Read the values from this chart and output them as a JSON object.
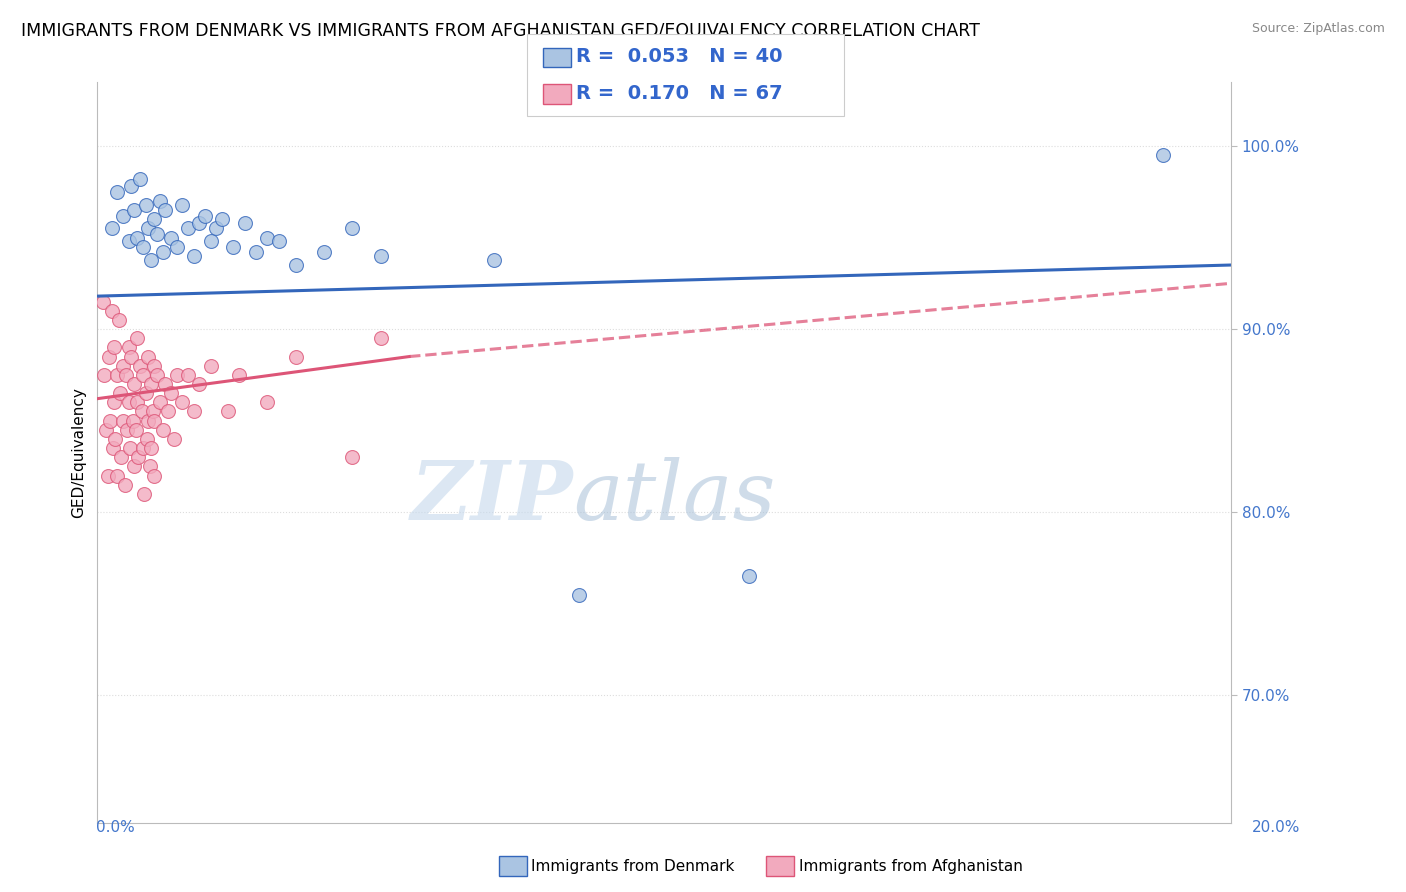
{
  "title": "IMMIGRANTS FROM DENMARK VS IMMIGRANTS FROM AFGHANISTAN GED/EQUIVALENCY CORRELATION CHART",
  "source": "Source: ZipAtlas.com",
  "ylabel": "GED/Equivalency",
  "xlim": [
    0.0,
    20.0
  ],
  "ylim": [
    63.0,
    103.5
  ],
  "color_denmark": "#aac4e2",
  "color_afghanistan": "#f2aabe",
  "trend_color_denmark": "#3366bb",
  "trend_color_afghanistan": "#dd5577",
  "trend_dk_x0": 0.0,
  "trend_dk_y0": 91.8,
  "trend_dk_x1": 20.0,
  "trend_dk_y1": 93.5,
  "trend_af_solid_x0": 0.0,
  "trend_af_solid_y0": 86.2,
  "trend_af_solid_x1": 5.5,
  "trend_af_solid_y1": 88.5,
  "trend_af_dash_x0": 5.5,
  "trend_af_dash_y0": 88.5,
  "trend_af_dash_x1": 20.0,
  "trend_af_dash_y1": 92.5,
  "scatter_denmark": [
    [
      0.25,
      95.5
    ],
    [
      0.35,
      97.5
    ],
    [
      0.45,
      96.2
    ],
    [
      0.55,
      94.8
    ],
    [
      0.6,
      97.8
    ],
    [
      0.65,
      96.5
    ],
    [
      0.7,
      95.0
    ],
    [
      0.75,
      98.2
    ],
    [
      0.8,
      94.5
    ],
    [
      0.85,
      96.8
    ],
    [
      0.9,
      95.5
    ],
    [
      0.95,
      93.8
    ],
    [
      1.0,
      96.0
    ],
    [
      1.05,
      95.2
    ],
    [
      1.1,
      97.0
    ],
    [
      1.15,
      94.2
    ],
    [
      1.2,
      96.5
    ],
    [
      1.3,
      95.0
    ],
    [
      1.4,
      94.5
    ],
    [
      1.5,
      96.8
    ],
    [
      1.6,
      95.5
    ],
    [
      1.7,
      94.0
    ],
    [
      1.8,
      95.8
    ],
    [
      1.9,
      96.2
    ],
    [
      2.0,
      94.8
    ],
    [
      2.1,
      95.5
    ],
    [
      2.2,
      96.0
    ],
    [
      2.4,
      94.5
    ],
    [
      2.6,
      95.8
    ],
    [
      2.8,
      94.2
    ],
    [
      3.0,
      95.0
    ],
    [
      3.2,
      94.8
    ],
    [
      3.5,
      93.5
    ],
    [
      4.0,
      94.2
    ],
    [
      4.5,
      95.5
    ],
    [
      5.0,
      94.0
    ],
    [
      7.0,
      93.8
    ],
    [
      8.5,
      75.5
    ],
    [
      11.5,
      76.5
    ],
    [
      18.8,
      99.5
    ]
  ],
  "scatter_afghanistan": [
    [
      0.1,
      91.5
    ],
    [
      0.12,
      87.5
    ],
    [
      0.15,
      84.5
    ],
    [
      0.18,
      82.0
    ],
    [
      0.2,
      88.5
    ],
    [
      0.22,
      85.0
    ],
    [
      0.25,
      91.0
    ],
    [
      0.28,
      83.5
    ],
    [
      0.3,
      89.0
    ],
    [
      0.3,
      86.0
    ],
    [
      0.32,
      84.0
    ],
    [
      0.35,
      87.5
    ],
    [
      0.35,
      82.0
    ],
    [
      0.38,
      90.5
    ],
    [
      0.4,
      86.5
    ],
    [
      0.42,
      83.0
    ],
    [
      0.45,
      88.0
    ],
    [
      0.45,
      85.0
    ],
    [
      0.48,
      81.5
    ],
    [
      0.5,
      87.5
    ],
    [
      0.52,
      84.5
    ],
    [
      0.55,
      89.0
    ],
    [
      0.55,
      86.0
    ],
    [
      0.58,
      83.5
    ],
    [
      0.6,
      88.5
    ],
    [
      0.62,
      85.0
    ],
    [
      0.65,
      87.0
    ],
    [
      0.65,
      82.5
    ],
    [
      0.68,
      84.5
    ],
    [
      0.7,
      89.5
    ],
    [
      0.7,
      86.0
    ],
    [
      0.72,
      83.0
    ],
    [
      0.75,
      88.0
    ],
    [
      0.78,
      85.5
    ],
    [
      0.8,
      87.5
    ],
    [
      0.8,
      83.5
    ],
    [
      0.82,
      81.0
    ],
    [
      0.85,
      86.5
    ],
    [
      0.88,
      84.0
    ],
    [
      0.9,
      88.5
    ],
    [
      0.9,
      85.0
    ],
    [
      0.92,
      82.5
    ],
    [
      0.95,
      87.0
    ],
    [
      0.95,
      83.5
    ],
    [
      0.98,
      85.5
    ],
    [
      1.0,
      88.0
    ],
    [
      1.0,
      85.0
    ],
    [
      1.0,
      82.0
    ],
    [
      1.05,
      87.5
    ],
    [
      1.1,
      86.0
    ],
    [
      1.15,
      84.5
    ],
    [
      1.2,
      87.0
    ],
    [
      1.25,
      85.5
    ],
    [
      1.3,
      86.5
    ],
    [
      1.35,
      84.0
    ],
    [
      1.4,
      87.5
    ],
    [
      1.5,
      86.0
    ],
    [
      1.6,
      87.5
    ],
    [
      1.7,
      85.5
    ],
    [
      1.8,
      87.0
    ],
    [
      2.0,
      88.0
    ],
    [
      2.5,
      87.5
    ],
    [
      3.0,
      86.0
    ],
    [
      3.5,
      88.5
    ],
    [
      5.0,
      89.5
    ],
    [
      2.3,
      85.5
    ],
    [
      4.5,
      83.0
    ]
  ],
  "watermark_zip": "ZIP",
  "watermark_atlas": "atlas",
  "background_color": "#ffffff",
  "grid_color": "#dddddd",
  "title_fontsize": 12.5,
  "axis_label_fontsize": 11,
  "tick_fontsize": 11,
  "legend_fontsize": 14
}
